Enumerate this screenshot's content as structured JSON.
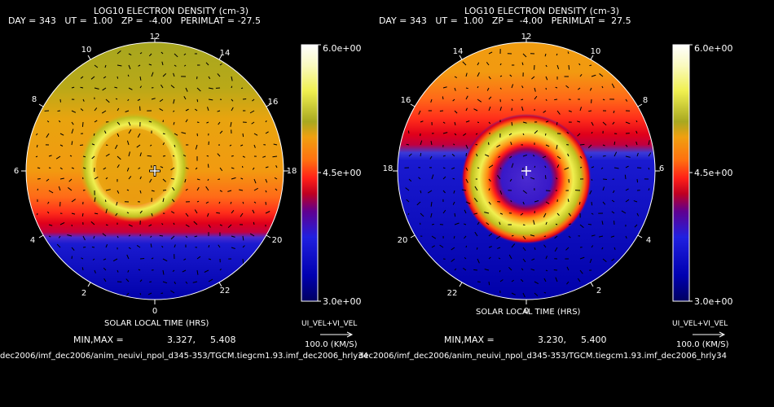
{
  "panels": [
    {
      "title": "LOG10 ELECTRON DENSITY (cm-3)",
      "subtitle": "DAY = 343   UT =  1.00   ZP =  -4.00   PERIMLAT = -27.5",
      "xlabel": "SOLAR LOCAL TIME (HRS)",
      "minmax_label": "MIN,MAX =",
      "min": "3.327,",
      "max": "5.408",
      "clock_labels": [
        "12",
        "14",
        "16",
        "18",
        "20",
        "22",
        "0",
        "2",
        "4",
        "6",
        "8",
        "10"
      ],
      "colorbar_ticks": [
        "6.0e+00",
        "4.5e+00",
        "3.0e+00"
      ],
      "vector_label": "UI_VEL+VI_VEL",
      "vector_scale": "100.0 (KM/S)",
      "footer": "dec2006/imf_dec2006/anim_neuivi_npol_d345-353/TGCM.tiegcm1.93.imf_dec2006_hrly34"
    },
    {
      "title": "LOG10 ELECTRON DENSITY (cm-3)",
      "subtitle": "DAY = 343   UT =  1.00   ZP =  -4.00   PERIMLAT =  27.5",
      "xlabel": "SOLAR LOCAL TIME (HRS)",
      "minmax_label": "MIN,MAX =",
      "min": "3.230,",
      "max": "5.400",
      "clock_labels": [
        "12",
        "10",
        "8",
        "6",
        "4",
        "2",
        "0",
        "22",
        "20",
        "18",
        "16",
        "14"
      ],
      "colorbar_ticks": [
        "6.0e+00",
        "4.5e+00",
        "3.0e+00"
      ],
      "vector_label": "UI_VEL+VI_VEL",
      "vector_scale": "100.0 (KM/S)",
      "footer": "dec2006/imf_dec2006/anim_neuivi_npol_d345-353/TGCM.tiegcm1.93.imf_dec2006_hrly34"
    }
  ],
  "chart_data": [
    {
      "type": "heatmap",
      "title": "LOG10 ELECTRON DENSITY (cm-3)",
      "xlabel": "SOLAR LOCAL TIME (HRS)",
      "projection": "polar",
      "colorbar_range": [
        3.0,
        6.0
      ],
      "colorbar_ticks": [
        6.0,
        4.5,
        3.0
      ],
      "min": 3.327,
      "max": 5.408,
      "day": 343,
      "ut": 1.0,
      "zp": -4.0,
      "perimlat": -27.5
    },
    {
      "type": "heatmap",
      "title": "LOG10 ELECTRON DENSITY (cm-3)",
      "xlabel": "SOLAR LOCAL TIME (HRS)",
      "projection": "polar",
      "colorbar_range": [
        3.0,
        6.0
      ],
      "colorbar_ticks": [
        6.0,
        4.5,
        3.0
      ],
      "min": 3.23,
      "max": 5.4,
      "day": 343,
      "ut": 1.0,
      "zp": -4.0,
      "perimlat": 27.5
    }
  ]
}
